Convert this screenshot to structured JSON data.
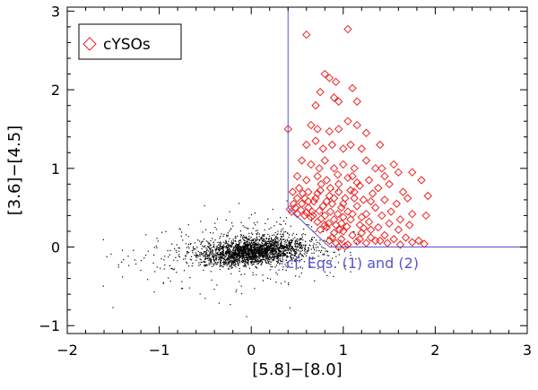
{
  "chart_data": {
    "type": "scatter",
    "xlabel": "[5.8]−[8.0]",
    "ylabel": "[3.6]−[4.5]",
    "xlim": [
      -2,
      3
    ],
    "ylim": [
      -1.1,
      3.05
    ],
    "x_ticks": [
      -2,
      -1,
      0,
      1,
      2,
      3
    ],
    "x_tick_labels": [
      "−2",
      "−1",
      "0",
      "1",
      "2",
      "3"
    ],
    "y_ticks": [
      -1,
      0,
      1,
      2,
      3
    ],
    "y_tick_labels": [
      "−1",
      "0",
      "1",
      "2",
      "3"
    ],
    "legend": {
      "position": "top-left",
      "entries": [
        "cYSOs"
      ]
    },
    "annotation": "cf. Eqs. (1) and (2)",
    "colors": {
      "cysos": "#ee2222",
      "field": "#000000",
      "boundary": "#5555cc",
      "annotation": "#5555cc"
    },
    "boundary": [
      [
        0.4,
        3.05
      ],
      [
        0.4,
        0.5
      ],
      [
        0.85,
        0.0
      ],
      [
        3.0,
        0.0
      ]
    ],
    "field_cloud": {
      "description": "dense cloud of field stars",
      "center": [
        0.0,
        -0.05
      ],
      "spread": [
        0.35,
        0.08
      ],
      "x_range": [
        -1.7,
        1.2
      ],
      "count": 2600
    },
    "series": [
      {
        "name": "cYSOs",
        "marker": "diamond",
        "points": [
          [
            0.4,
            1.5
          ],
          [
            0.6,
            2.7
          ],
          [
            1.05,
            2.77
          ],
          [
            0.8,
            2.2
          ],
          [
            0.85,
            2.15
          ],
          [
            0.75,
            1.97
          ],
          [
            0.92,
            2.1
          ],
          [
            1.1,
            2.02
          ],
          [
            0.95,
            1.85
          ],
          [
            0.7,
            1.8
          ],
          [
            0.9,
            1.9
          ],
          [
            1.15,
            1.85
          ],
          [
            0.65,
            1.55
          ],
          [
            0.72,
            1.5
          ],
          [
            0.85,
            1.47
          ],
          [
            0.95,
            1.5
          ],
          [
            1.05,
            1.6
          ],
          [
            1.15,
            1.55
          ],
          [
            1.25,
            1.45
          ],
          [
            0.6,
            1.3
          ],
          [
            0.7,
            1.35
          ],
          [
            0.78,
            1.25
          ],
          [
            0.88,
            1.3
          ],
          [
            1.0,
            1.25
          ],
          [
            1.08,
            1.3
          ],
          [
            1.2,
            1.25
          ],
          [
            1.4,
            1.3
          ],
          [
            1.42,
            1.0
          ],
          [
            1.55,
            1.05
          ],
          [
            0.55,
            1.1
          ],
          [
            0.65,
            1.05
          ],
          [
            0.8,
            1.1
          ],
          [
            0.9,
            1.0
          ],
          [
            1.0,
            1.05
          ],
          [
            1.12,
            1.0
          ],
          [
            1.25,
            1.1
          ],
          [
            1.35,
            1.0
          ],
          [
            1.45,
            0.9
          ],
          [
            1.6,
            0.95
          ],
          [
            1.75,
            0.95
          ],
          [
            1.85,
            0.85
          ],
          [
            0.5,
            0.9
          ],
          [
            0.6,
            0.85
          ],
          [
            0.72,
            0.9
          ],
          [
            0.82,
            0.85
          ],
          [
            0.95,
            0.8
          ],
          [
            1.05,
            0.88
          ],
          [
            1.18,
            0.78
          ],
          [
            1.28,
            0.85
          ],
          [
            1.38,
            0.75
          ],
          [
            1.5,
            0.8
          ],
          [
            1.65,
            0.7
          ],
          [
            0.45,
            0.7
          ],
          [
            0.52,
            0.75
          ],
          [
            0.62,
            0.7
          ],
          [
            0.75,
            0.72
          ],
          [
            0.85,
            0.65
          ],
          [
            0.95,
            0.7
          ],
          [
            1.02,
            0.62
          ],
          [
            1.12,
            0.7
          ],
          [
            1.22,
            0.6
          ],
          [
            1.32,
            0.68
          ],
          [
            1.45,
            0.6
          ],
          [
            1.58,
            0.55
          ],
          [
            1.7,
            0.62
          ],
          [
            1.92,
            0.65
          ],
          [
            0.42,
            0.48
          ],
          [
            0.46,
            0.55
          ],
          [
            0.55,
            0.55
          ],
          [
            0.62,
            0.5
          ],
          [
            0.68,
            0.58
          ],
          [
            0.78,
            0.52
          ],
          [
            0.88,
            0.55
          ],
          [
            0.98,
            0.5
          ],
          [
            1.05,
            0.45
          ],
          [
            1.15,
            0.52
          ],
          [
            1.25,
            0.42
          ],
          [
            1.35,
            0.5
          ],
          [
            1.42,
            0.4
          ],
          [
            1.52,
            0.45
          ],
          [
            1.62,
            0.35
          ],
          [
            1.75,
            0.42
          ],
          [
            1.9,
            0.4
          ],
          [
            0.5,
            0.42
          ],
          [
            0.58,
            0.4
          ],
          [
            0.65,
            0.38
          ],
          [
            0.72,
            0.32
          ],
          [
            0.8,
            0.4
          ],
          [
            0.9,
            0.35
          ],
          [
            0.98,
            0.3
          ],
          [
            1.08,
            0.35
          ],
          [
            1.18,
            0.28
          ],
          [
            1.28,
            0.32
          ],
          [
            1.38,
            0.25
          ],
          [
            1.5,
            0.3
          ],
          [
            1.6,
            0.22
          ],
          [
            1.72,
            0.28
          ],
          [
            0.75,
            0.22
          ],
          [
            0.82,
            0.25
          ],
          [
            0.9,
            0.18
          ],
          [
            1.0,
            0.2
          ],
          [
            1.1,
            0.15
          ],
          [
            1.2,
            0.18
          ],
          [
            1.3,
            0.12
          ],
          [
            1.45,
            0.15
          ],
          [
            1.55,
            0.1
          ],
          [
            1.68,
            0.12
          ],
          [
            1.82,
            0.08
          ],
          [
            0.85,
            0.08
          ],
          [
            0.92,
            0.05
          ],
          [
            0.98,
            0.1
          ],
          [
            1.05,
            0.03
          ],
          [
            1.15,
            0.07
          ],
          [
            1.25,
            0.05
          ],
          [
            1.35,
            0.08
          ],
          [
            1.48,
            0.05
          ],
          [
            1.62,
            0.03
          ],
          [
            1.75,
            0.06
          ],
          [
            1.88,
            0.04
          ],
          [
            0.95,
            0.0
          ],
          [
            1.02,
            0.01
          ],
          [
            0.7,
            0.62
          ],
          [
            0.58,
            0.62
          ],
          [
            0.66,
            0.45
          ],
          [
            0.74,
            0.46
          ],
          [
            0.86,
            0.45
          ],
          [
            0.94,
            0.42
          ],
          [
            1.0,
            0.38
          ],
          [
            1.1,
            0.42
          ],
          [
            1.2,
            0.38
          ],
          [
            0.84,
            0.3
          ],
          [
            0.92,
            0.28
          ],
          [
            0.96,
            0.22
          ],
          [
            1.04,
            0.26
          ],
          [
            0.88,
            0.12
          ],
          [
            1.18,
            0.1
          ],
          [
            0.5,
            0.62
          ],
          [
            0.44,
            0.45
          ],
          [
            0.48,
            0.5
          ],
          [
            0.54,
            0.47
          ],
          [
            0.6,
            0.44
          ],
          [
            0.67,
            0.4
          ],
          [
            0.76,
            0.36
          ],
          [
            0.8,
            0.28
          ],
          [
            1.12,
            0.62
          ],
          [
            1.3,
            0.58
          ],
          [
            0.76,
            0.8
          ],
          [
            0.86,
            0.75
          ],
          [
            0.94,
            0.92
          ],
          [
            1.1,
            0.9
          ],
          [
            0.74,
            1.0
          ],
          [
            1.0,
            0.55
          ],
          [
            0.82,
            0.58
          ],
          [
            0.72,
            0.68
          ],
          [
            0.62,
            0.58
          ],
          [
            0.56,
            0.68
          ],
          [
            1.08,
            0.72
          ],
          [
            1.15,
            0.82
          ],
          [
            0.9,
            0.62
          ],
          [
            1.3,
            0.22
          ],
          [
            1.4,
            0.08
          ],
          [
            1.22,
            0.24
          ]
        ]
      }
    ]
  }
}
